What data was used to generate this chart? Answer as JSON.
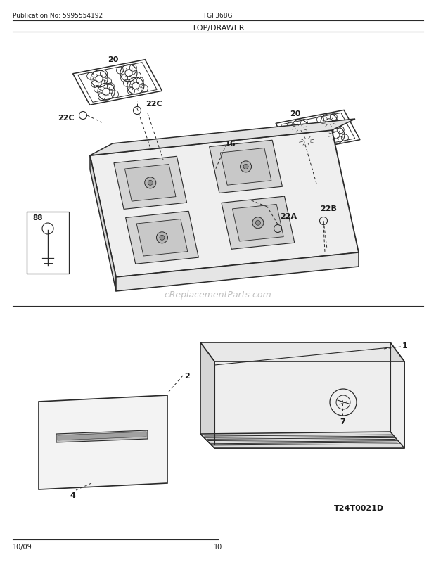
{
  "title": "TOP/DRAWER",
  "pub_no": "Publication No: 5995554192",
  "model": "FGF368G",
  "date": "10/09",
  "page": "10",
  "watermark": "eReplacementParts.com",
  "diagram_id": "T24T0021D",
  "bg_color": "#ffffff",
  "line_color": "#2a2a2a",
  "text_color": "#1a1a1a"
}
